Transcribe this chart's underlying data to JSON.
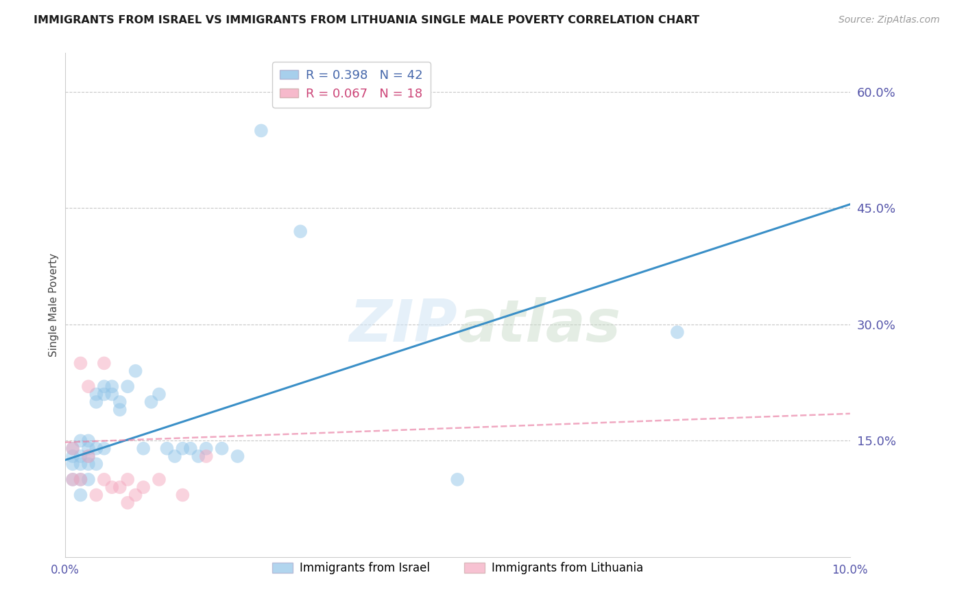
{
  "title": "IMMIGRANTS FROM ISRAEL VS IMMIGRANTS FROM LITHUANIA SINGLE MALE POVERTY CORRELATION CHART",
  "source": "Source: ZipAtlas.com",
  "ylabel": "Single Male Poverty",
  "xlim": [
    0.0,
    0.1
  ],
  "ylim": [
    0.0,
    0.65
  ],
  "ytick_labels_right": [
    "60.0%",
    "45.0%",
    "30.0%",
    "15.0%"
  ],
  "ytick_vals_right": [
    0.6,
    0.45,
    0.3,
    0.15
  ],
  "grid_color": "#c8c8c8",
  "legend1_label": "Immigrants from Israel",
  "legend2_label": "Immigrants from Lithuania",
  "r1": 0.398,
  "n1": 42,
  "r2": 0.067,
  "n2": 18,
  "color_israel": "#91c4e8",
  "color_lithuania": "#f4a8bf",
  "color_israel_line": "#3a8fc7",
  "color_lithuania_line": "#e87aa0",
  "israel_x": [
    0.001,
    0.001,
    0.001,
    0.001,
    0.002,
    0.002,
    0.002,
    0.002,
    0.002,
    0.003,
    0.003,
    0.003,
    0.003,
    0.003,
    0.004,
    0.004,
    0.004,
    0.004,
    0.005,
    0.005,
    0.005,
    0.006,
    0.006,
    0.007,
    0.007,
    0.008,
    0.009,
    0.01,
    0.011,
    0.012,
    0.013,
    0.014,
    0.015,
    0.016,
    0.017,
    0.018,
    0.02,
    0.022,
    0.025,
    0.03,
    0.05,
    0.078
  ],
  "israel_y": [
    0.14,
    0.13,
    0.12,
    0.1,
    0.15,
    0.13,
    0.12,
    0.1,
    0.08,
    0.15,
    0.14,
    0.13,
    0.12,
    0.1,
    0.21,
    0.2,
    0.14,
    0.12,
    0.22,
    0.21,
    0.14,
    0.22,
    0.21,
    0.2,
    0.19,
    0.22,
    0.24,
    0.14,
    0.2,
    0.21,
    0.14,
    0.13,
    0.14,
    0.14,
    0.13,
    0.14,
    0.14,
    0.13,
    0.55,
    0.42,
    0.1,
    0.29
  ],
  "lithuania_x": [
    0.001,
    0.001,
    0.002,
    0.002,
    0.003,
    0.003,
    0.004,
    0.005,
    0.005,
    0.006,
    0.007,
    0.008,
    0.008,
    0.009,
    0.01,
    0.012,
    0.015,
    0.018
  ],
  "lithuania_y": [
    0.14,
    0.1,
    0.25,
    0.1,
    0.22,
    0.13,
    0.08,
    0.25,
    0.1,
    0.09,
    0.09,
    0.07,
    0.1,
    0.08,
    0.09,
    0.1,
    0.08,
    0.13
  ],
  "israel_line_x": [
    0.0,
    0.1
  ],
  "israel_line_y": [
    0.125,
    0.455
  ],
  "lithuania_line_x": [
    0.0,
    0.1
  ],
  "lithuania_line_y": [
    0.148,
    0.185
  ]
}
